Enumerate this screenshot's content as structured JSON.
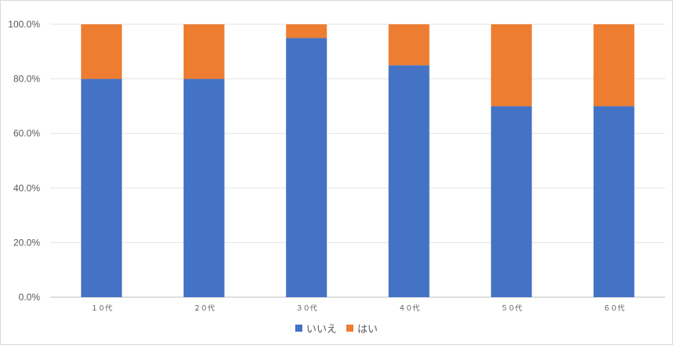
{
  "chart_data": {
    "type": "bar",
    "stacked": true,
    "categories": [
      "１０代",
      "２０代",
      "３０代",
      "４０代",
      "５０代",
      "６０代"
    ],
    "series": [
      {
        "name": "いいえ",
        "values": [
          80,
          80,
          95,
          85,
          70,
          70
        ],
        "color": "#4472c4"
      },
      {
        "name": "はい",
        "values": [
          20,
          20,
          5,
          15,
          30,
          30
        ],
        "color": "#ed7d31"
      }
    ],
    "y_ticks": [
      "0.0%",
      "20.0%",
      "40.0%",
      "60.0%",
      "80.0%",
      "100.0%"
    ],
    "ylim": [
      0,
      100
    ],
    "grid": true,
    "legend_position": "bottom"
  }
}
